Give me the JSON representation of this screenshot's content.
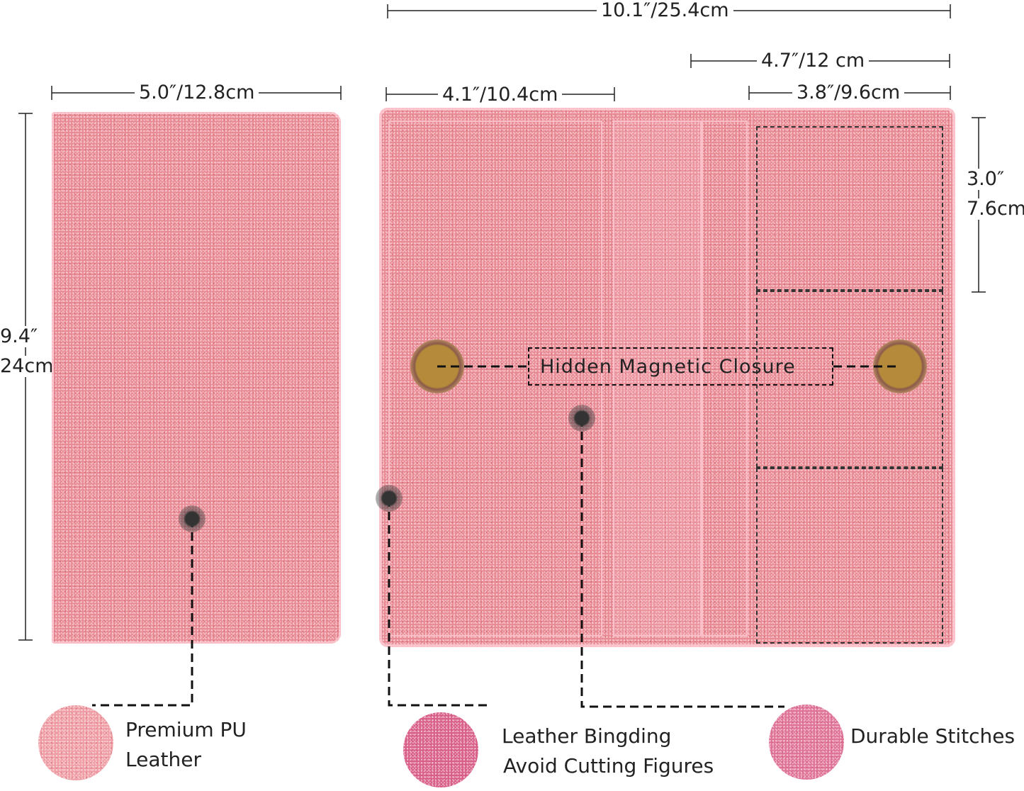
{
  "dimensions": {
    "total_width": "10.1″/25.4cm",
    "right_half_width": "4.7″/12 cm",
    "left_panel_width": "4.1″/10.4cm",
    "pocket_width": "3.8″/9.6cm",
    "closed_width": "5.0″/12.8cm",
    "height_in": "9.4″",
    "height_cm": "24cm",
    "pocket_height_in": "3.0″",
    "pocket_height_cm": "7.6cm"
  },
  "magnet_label": "Hidden Magnetic Closure",
  "features": [
    {
      "line1": "Premium PU",
      "line2": "Leather"
    },
    {
      "line1": "Leather Bingding",
      "line2": "Avoid Cutting Figures"
    },
    {
      "line1": "Durable Stitches"
    }
  ],
  "colors": {
    "glitter_pink": "#e98b94",
    "magnet_gold": "#b58a3a",
    "line": "#222222"
  }
}
